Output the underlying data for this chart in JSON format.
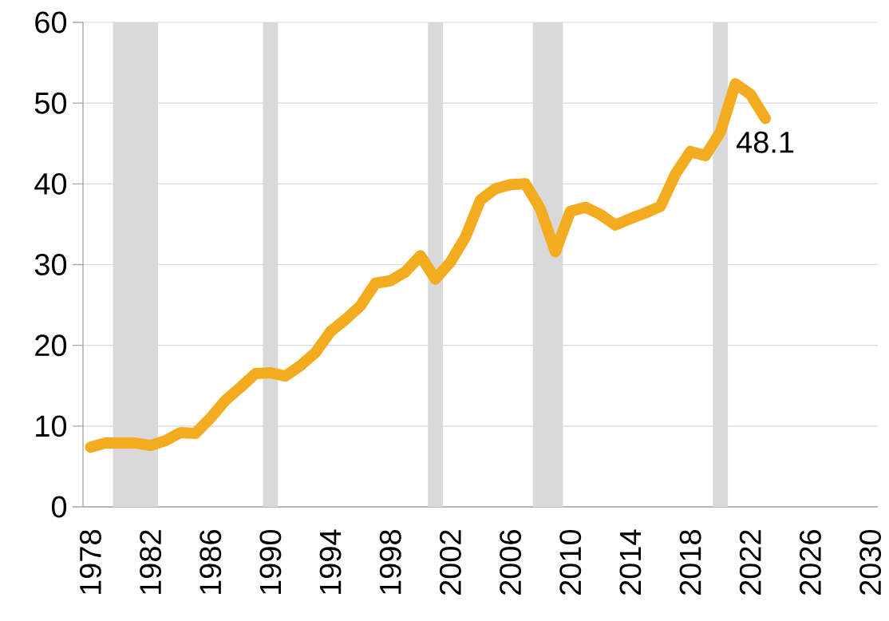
{
  "chart_data": {
    "type": "line",
    "x": [
      1978,
      1979,
      1980,
      1981,
      1982,
      1983,
      1984,
      1985,
      1986,
      1987,
      1988,
      1989,
      1990,
      1991,
      1992,
      1993,
      1994,
      1995,
      1996,
      1997,
      1998,
      1999,
      2000,
      2001,
      2002,
      2003,
      2004,
      2005,
      2006,
      2007,
      2008,
      2009,
      2010,
      2011,
      2012,
      2013,
      2014,
      2015,
      2016,
      2017,
      2018,
      2019,
      2020,
      2021,
      2022,
      2023
    ],
    "series": [
      {
        "color": "#f3ac1f",
        "values": [
          7.4,
          7.9,
          7.9,
          7.9,
          7.6,
          8.2,
          9.2,
          9.1,
          11.0,
          13.2,
          14.8,
          16.5,
          16.6,
          16.2,
          17.5,
          19.1,
          21.7,
          23.2,
          24.9,
          27.7,
          28.0,
          29.1,
          31.1,
          28.2,
          30.3,
          33.4,
          38.0,
          39.4,
          39.9,
          40.0,
          36.9,
          31.6,
          36.6,
          37.1,
          36.2,
          34.9,
          35.7,
          36.4,
          37.2,
          41.2,
          44.0,
          43.5,
          46.4,
          52.4,
          51.1,
          48.1
        ]
      }
    ],
    "xlim": [
      1977.5,
      2030.5
    ],
    "xticks": [
      1978,
      1982,
      1986,
      1990,
      1994,
      1998,
      2002,
      2006,
      2010,
      2014,
      2018,
      2022,
      2026,
      2030
    ],
    "ylim": [
      0,
      60
    ],
    "yticks": [
      0,
      10,
      20,
      30,
      40,
      50,
      60
    ],
    "grid": "y",
    "bands": [
      {
        "axis": "x",
        "from": 1979.5,
        "to": 1982.5,
        "color": "#d9d9d9"
      },
      {
        "axis": "x",
        "from": 1989.5,
        "to": 1990.5,
        "color": "#d9d9d9"
      },
      {
        "axis": "x",
        "from": 2000.5,
        "to": 2001.5,
        "color": "#d9d9d9"
      },
      {
        "axis": "x",
        "from": 2007.5,
        "to": 2009.5,
        "color": "#d9d9d9"
      },
      {
        "axis": "x",
        "from": 2019.5,
        "to": 2020.5,
        "color": "#d9d9d9"
      }
    ],
    "annotations": [
      {
        "text": "48.1",
        "x": 2023,
        "y": 48.1
      }
    ]
  }
}
